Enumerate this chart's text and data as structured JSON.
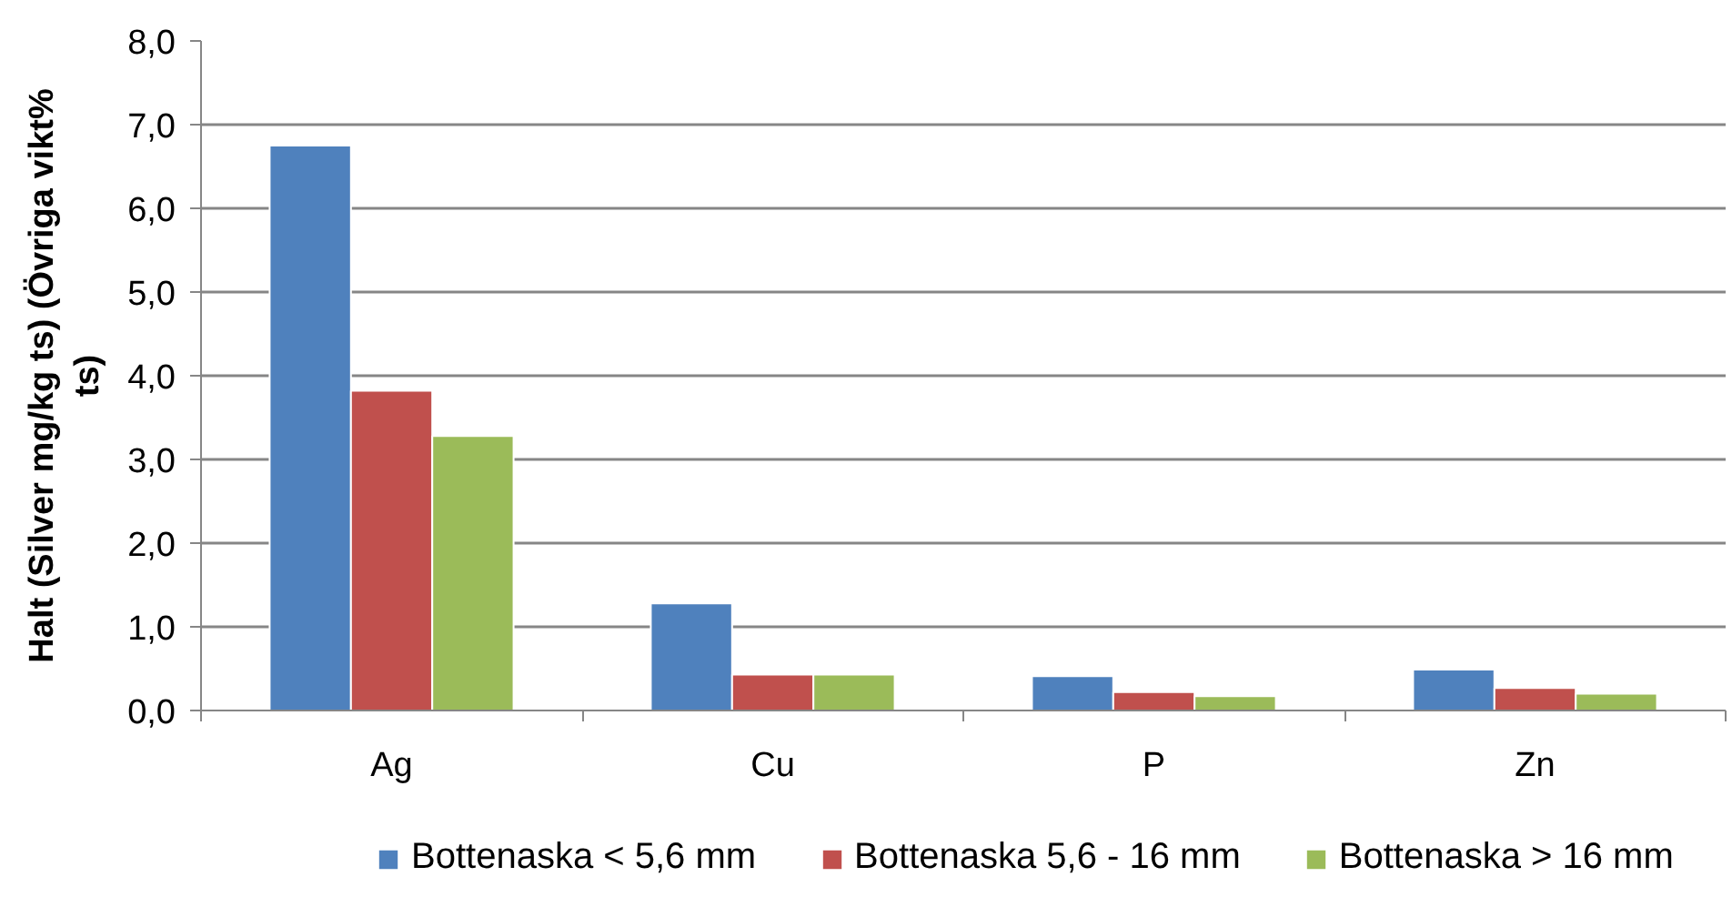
{
  "chart_data": {
    "type": "bar",
    "categories": [
      "Ag",
      "Cu",
      "P",
      "Zn"
    ],
    "ylabel": "Halt (Silver mg/kg ts) (Övriga vikt% ts)",
    "series": [
      {
        "name": "Bottenaska < 5,6 mm",
        "color": "#4f81bd",
        "values": [
          6.75,
          1.28,
          0.41,
          0.49
        ]
      },
      {
        "name": "Bottenaska 5,6 - 16 mm",
        "color": "#c0504d",
        "values": [
          3.82,
          0.43,
          0.22,
          0.27
        ]
      },
      {
        "name": "Bottenaska > 16 mm",
        "color": "#9bbb59",
        "values": [
          3.28,
          0.43,
          0.17,
          0.2
        ]
      }
    ],
    "ylim": [
      0,
      8
    ],
    "yticks": [
      {
        "value": 0,
        "label": "0,0"
      },
      {
        "value": 1,
        "label": "1,0"
      },
      {
        "value": 2,
        "label": "2,0"
      },
      {
        "value": 3,
        "label": "3,0"
      },
      {
        "value": 4,
        "label": "4,0"
      },
      {
        "value": 5,
        "label": "5,0"
      },
      {
        "value": 6,
        "label": "6,0"
      },
      {
        "value": 7,
        "label": "7,0"
      },
      {
        "value": 8,
        "label": "8,0"
      }
    ],
    "grid": "y",
    "legend": "bottom"
  }
}
